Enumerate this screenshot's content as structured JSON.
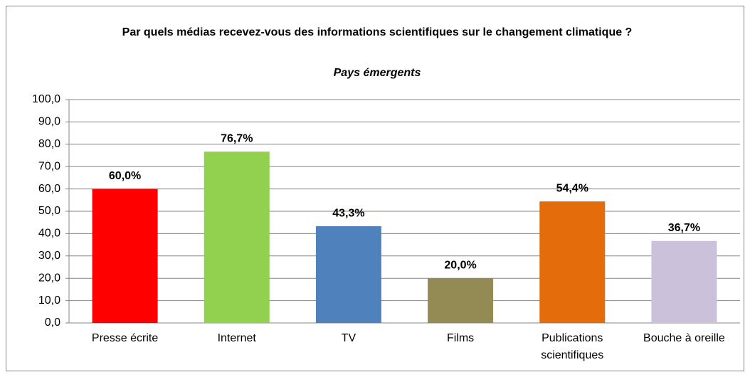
{
  "chart_data": {
    "type": "bar",
    "title": "Par quels médias recevez-vous des informations scientifiques sur le changement climatique ?",
    "subtitle": "Pays émergents",
    "categories": [
      "Presse écrite",
      "Internet",
      "TV",
      "Films",
      "Publications scientifiques",
      "Bouche à oreille"
    ],
    "values": [
      60.0,
      76.7,
      43.3,
      20.0,
      54.4,
      36.7
    ],
    "value_labels": [
      "60,0%",
      "76,7%",
      "43,3%",
      "20,0%",
      "54,4%",
      "36,7%"
    ],
    "colors": [
      "#ff0000",
      "#92d050",
      "#4f81bd",
      "#948a54",
      "#e46c0a",
      "#ccc1da"
    ],
    "ylim": [
      0,
      100
    ],
    "yticks": [
      {
        "value": 0,
        "label": "0,0"
      },
      {
        "value": 10,
        "label": "10,0"
      },
      {
        "value": 20,
        "label": "20,0"
      },
      {
        "value": 30,
        "label": "30,0"
      },
      {
        "value": 40,
        "label": "40,0"
      },
      {
        "value": 50,
        "label": "50,0"
      },
      {
        "value": 60,
        "label": "60,0"
      },
      {
        "value": 70,
        "label": "70,0"
      },
      {
        "value": 80,
        "label": "80,0"
      },
      {
        "value": 90,
        "label": "90,0"
      },
      {
        "value": 100,
        "label": "100,0"
      }
    ],
    "grid": true
  }
}
